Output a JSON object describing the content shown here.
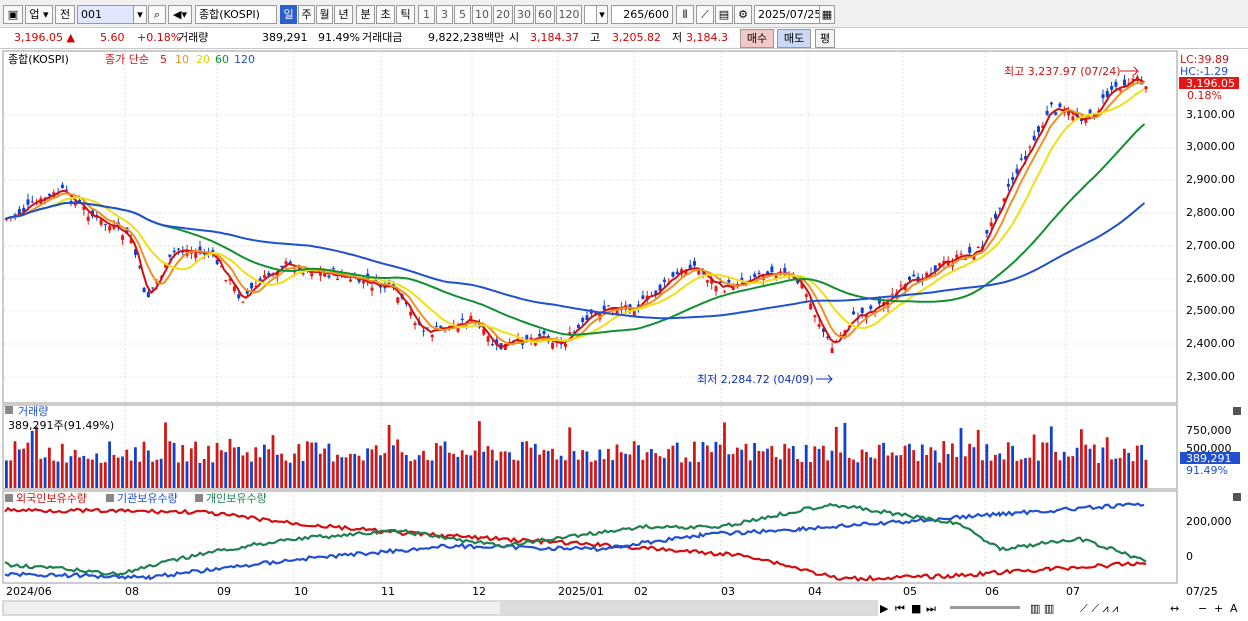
{
  "toolbar": {
    "market": "업",
    "prev_label": "전",
    "code": "001",
    "name": "종합(KOSPI)",
    "periods": [
      "일",
      "주",
      "월",
      "년",
      "분",
      "초",
      "틱"
    ],
    "selected_period": "일",
    "intervals": [
      "1",
      "3",
      "5",
      "10",
      "20",
      "30",
      "60",
      "120"
    ],
    "count": "265",
    "count_max": "/600",
    "date": "2025/07/25"
  },
  "info": {
    "price": "3,196.05",
    "change": "5.60",
    "change_pct": "+0.18%",
    "volume_label": "거래량",
    "volume": "389,291",
    "volume_pct": "91.49%",
    "amount_label": "거래대금",
    "amount": "9,822,238백만",
    "open_label": "시",
    "open": "3,184.37",
    "high_label": "고",
    "high": "3,205.82",
    "low_label": "저",
    "low": "3,184.3",
    "buy_label": "매수",
    "sell_label": "매도",
    "eval_label": "평"
  },
  "price_chart": {
    "title": "종합(KOSPI)",
    "ma_label": "종가 단순",
    "ma_periods": [
      "5",
      "10",
      "20",
      "60",
      "120"
    ],
    "ma_colors": [
      "#d01010",
      "#f09020",
      "#f0e010",
      "#109030",
      "#2050d0"
    ],
    "lc_label": "LC:39.89",
    "hc_label": "HC:-1.29",
    "last_price": "3,196.05",
    "last_pct": "0.18%",
    "high_annot": "최고 3,237.97 (07/24)",
    "low_annot": "최저 2,284.72 (04/09)",
    "y_ticks": [
      "3,100.00",
      "3,000.00",
      "2,900.00",
      "2,800.00",
      "2,700.00",
      "2,600.00",
      "2,500.00",
      "2,400.00",
      "2,300.00"
    ]
  },
  "volume_chart": {
    "title": "거래량",
    "readout": "389,291주(91.49%)",
    "y_ticks": [
      "750,000",
      "500,000"
    ],
    "last_value": "389,291",
    "last_pct": "91.49%"
  },
  "holding_chart": {
    "legend": [
      {
        "name": "외국인보유수량",
        "color": "#d01010"
      },
      {
        "name": "기관보유수량",
        "color": "#2050d0"
      },
      {
        "name": "개인보유수량",
        "color": "#208050"
      }
    ],
    "y_ticks": [
      "200,000",
      "0"
    ]
  },
  "x_axis": {
    "labels": [
      "2024/06",
      "08",
      "09",
      "10",
      "11",
      "12",
      "2025/01",
      "02",
      "03",
      "04",
      "05",
      "06",
      "07"
    ],
    "right_label": "07/25"
  }
}
